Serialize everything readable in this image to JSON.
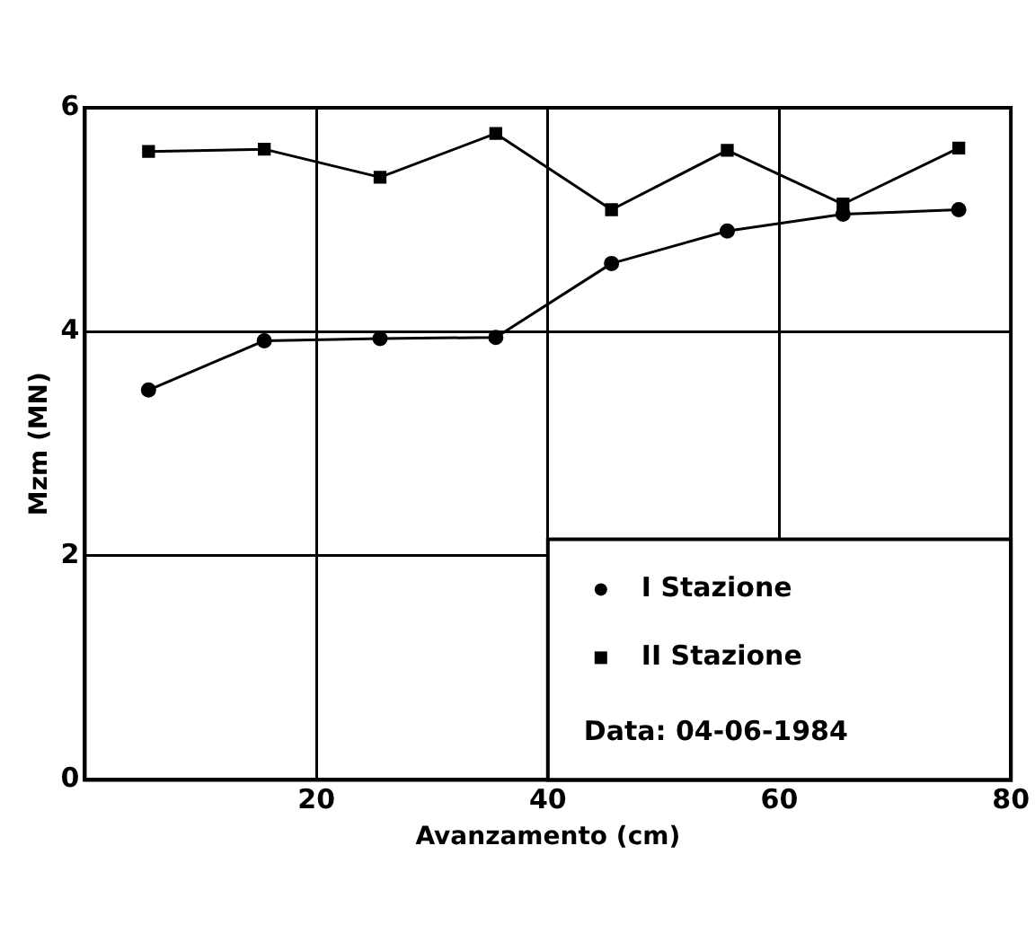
{
  "chart_data": {
    "type": "line",
    "xlabel": "Avanzamento (cm)",
    "ylabel": "Mzm (MN)",
    "xlim": [
      0,
      80
    ],
    "xticks": [
      {
        "value": 0,
        "label": null
      },
      20,
      40,
      60,
      80
    ],
    "ylim": [
      0,
      6
    ],
    "yticks": [
      0,
      2,
      4,
      6
    ],
    "grid": true,
    "legend": "bottom right",
    "line_style": "solid",
    "series": [
      {
        "name": "I Stazione",
        "color": "#000000",
        "marker": "circle",
        "x": [
          5.5,
          15.5,
          25.5,
          35.5,
          45.5,
          55.5,
          65.5,
          75.5
        ],
        "values": [
          3.48,
          3.92,
          3.94,
          3.95,
          4.61,
          4.9,
          5.05,
          5.09
        ]
      },
      {
        "name": "II Stazione",
        "color": "#000000",
        "marker": "square",
        "x": [
          5.5,
          15.5,
          25.5,
          35.5,
          45.5,
          55.5,
          65.5,
          75.5
        ],
        "values": [
          5.61,
          5.63,
          5.38,
          5.77,
          5.09,
          5.62,
          5.14,
          5.64
        ]
      }
    ],
    "annotations": [
      "Data: 04-06-1984"
    ]
  }
}
